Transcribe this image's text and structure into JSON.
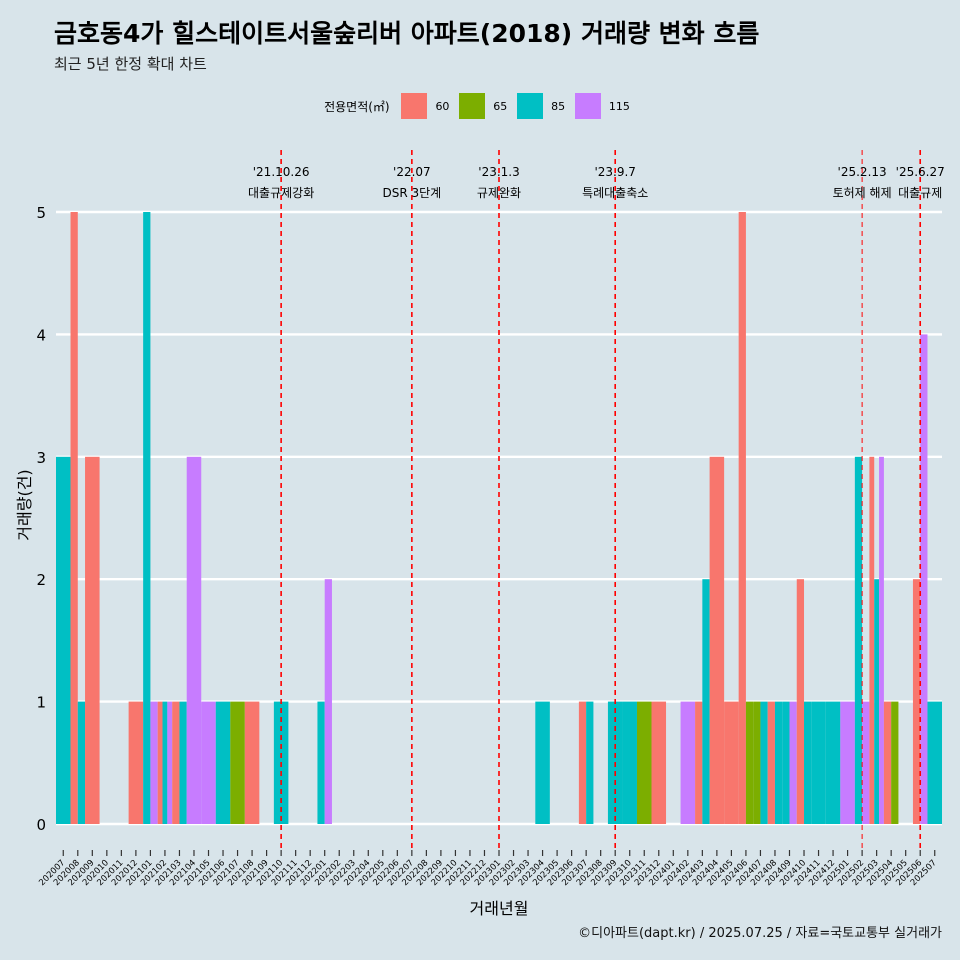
{
  "title": "금호동4가 힐스테이트서울숲리버 아파트(2018) 거래량 변화 흐름",
  "subtitle": "최근 5년 한정 확대 차트",
  "credit": "©디아파트(dapt.kr) / 2025.07.25 / 자료=국토교통부 실거래가",
  "legend": {
    "title": "전용면적(㎡)",
    "items": [
      {
        "label": "60",
        "color": "#F8766D"
      },
      {
        "label": "65",
        "color": "#7CAE00"
      },
      {
        "label": "85",
        "color": "#00BFC4"
      },
      {
        "label": "115",
        "color": "#C77CFF"
      }
    ]
  },
  "chart_data": {
    "type": "bar",
    "xlabel": "거래년월",
    "ylabel": "거래량(건)",
    "ylim": [
      0,
      5
    ],
    "yticks": [
      0,
      1,
      2,
      3,
      4,
      5
    ],
    "grid": true,
    "legend_position": "top",
    "categories": [
      "202007",
      "202008",
      "202009",
      "202010",
      "202011",
      "202012",
      "202101",
      "202102",
      "202103",
      "202104",
      "202105",
      "202106",
      "202107",
      "202108",
      "202109",
      "202110",
      "202111",
      "202112",
      "202201",
      "202202",
      "202203",
      "202204",
      "202205",
      "202206",
      "202207",
      "202208",
      "202209",
      "202210",
      "202211",
      "202212",
      "202301",
      "202302",
      "202303",
      "202304",
      "202305",
      "202306",
      "202307",
      "202308",
      "202309",
      "202310",
      "202311",
      "202312",
      "202401",
      "202402",
      "202403",
      "202404",
      "202405",
      "202406",
      "202407",
      "202408",
      "202409",
      "202410",
      "202411",
      "202412",
      "202501",
      "202502",
      "202503",
      "202504",
      "202505",
      "202506",
      "202507"
    ],
    "series": [
      {
        "name": "60",
        "color": "#F8766D",
        "values": [
          0,
          5,
          3,
          0,
          0,
          1,
          0,
          1,
          1,
          0,
          0,
          0,
          0,
          1,
          0,
          0,
          0,
          0,
          0,
          0,
          0,
          0,
          0,
          0,
          0,
          0,
          0,
          0,
          0,
          0,
          0,
          0,
          0,
          0,
          0,
          0,
          1,
          0,
          0,
          0,
          0,
          1,
          0,
          0,
          1,
          3,
          1,
          5,
          0,
          1,
          0,
          2,
          0,
          0,
          0,
          0,
          3,
          1,
          0,
          2,
          0
        ]
      },
      {
        "name": "65",
        "color": "#7CAE00",
        "values": [
          0,
          0,
          0,
          0,
          0,
          0,
          0,
          0,
          0,
          0,
          0,
          0,
          1,
          0,
          0,
          0,
          0,
          0,
          0,
          0,
          0,
          0,
          0,
          0,
          0,
          0,
          0,
          0,
          0,
          0,
          0,
          0,
          0,
          0,
          0,
          0,
          0,
          0,
          0,
          0,
          1,
          0,
          0,
          0,
          0,
          0,
          0,
          1,
          1,
          0,
          0,
          0,
          0,
          0,
          0,
          0,
          0,
          1,
          0,
          0,
          0
        ]
      },
      {
        "name": "85",
        "color": "#00BFC4",
        "values": [
          3,
          1,
          0,
          0,
          0,
          0,
          5,
          1,
          1,
          0,
          0,
          1,
          0,
          0,
          0,
          1,
          0,
          0,
          1,
          0,
          0,
          0,
          0,
          0,
          0,
          0,
          0,
          0,
          0,
          0,
          0,
          0,
          0,
          1,
          0,
          0,
          1,
          0,
          1,
          1,
          0,
          0,
          0,
          0,
          2,
          0,
          0,
          0,
          1,
          1,
          1,
          1,
          1,
          1,
          0,
          3,
          2,
          0,
          0,
          0,
          1
        ]
      },
      {
        "name": "115",
        "color": "#C77CFF",
        "values": [
          0,
          0,
          0,
          0,
          0,
          0,
          1,
          1,
          0,
          3,
          1,
          0,
          0,
          0,
          0,
          0,
          0,
          0,
          2,
          0,
          0,
          0,
          0,
          0,
          0,
          0,
          0,
          0,
          0,
          0,
          0,
          0,
          0,
          0,
          0,
          0,
          0,
          0,
          0,
          0,
          0,
          0,
          0,
          1,
          0,
          0,
          0,
          0,
          0,
          0,
          1,
          0,
          0,
          0,
          1,
          1,
          3,
          0,
          0,
          4,
          0
        ]
      }
    ],
    "events": [
      {
        "date": "'21.10.26",
        "label": "대출규제강화",
        "x": "202110"
      },
      {
        "date": "'22.07",
        "label": "DSR 3단계",
        "x": "202207"
      },
      {
        "date": "'23.1.3",
        "label": "규제완화",
        "x": "202301"
      },
      {
        "date": "'23.9.7",
        "label": "특례대출축소",
        "x": "202309"
      },
      {
        "date": "'25.2.13",
        "label": "토허제 해제",
        "x": "202502"
      },
      {
        "date": "'25.6.27",
        "label": "대출규제",
        "x": "202506"
      }
    ]
  }
}
